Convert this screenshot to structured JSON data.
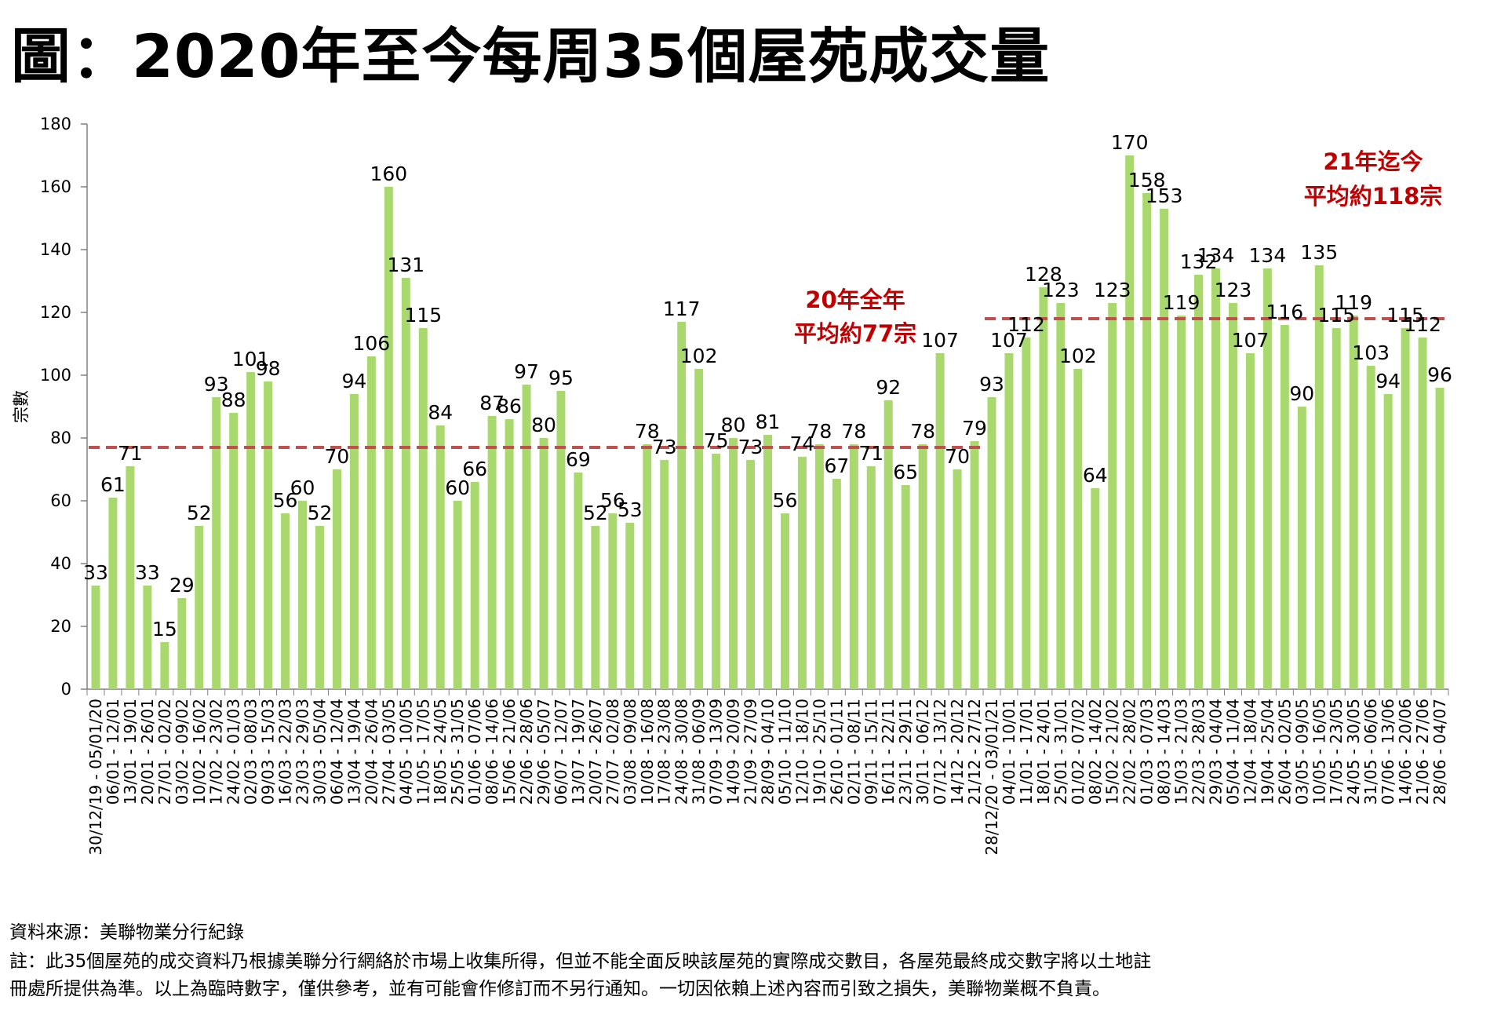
{
  "title": "圖：2020年至今每周35個屋苑成交量",
  "footer": {
    "source": "資料來源：美聯物業分行紀錄",
    "note1": "註：此35個屋苑的成交資料乃根據美聯分行網絡於市場上收集所得，但並不能全面反映該屋苑的實際成交數目，各屋苑最終成交數字將以土地註",
    "note2": "冊處所提供為準。以上為臨時數字，僅供參考，並有可能會作修訂而不另行通知。一切因依賴上述內容而引致之損失，美聯物業概不負責。"
  },
  "colors": {
    "bar": "#a9d86e",
    "avg_line": "#c0504d",
    "avg_text": "#c00000",
    "axis": "#808080"
  },
  "chart_data": {
    "type": "bar",
    "ylabel": "宗數",
    "ylim": [
      0,
      180
    ],
    "yticks": [
      0,
      20,
      40,
      60,
      80,
      100,
      120,
      140,
      160,
      180
    ],
    "grid": false,
    "categories": [
      "30/12/19 - 05/01/20",
      "06/01 - 12/01",
      "13/01 - 19/01",
      "20/01 - 26/01",
      "27/01 - 02/02",
      "03/02 - 09/02",
      "10/02 - 16/02",
      "17/02 - 23/02",
      "24/02 - 01/03",
      "02/03 - 08/03",
      "09/03 - 15/03",
      "16/03 - 22/03",
      "23/03 - 29/03",
      "30/03 - 05/04",
      "06/04 - 12/04",
      "13/04 - 19/04",
      "20/04 - 26/04",
      "27/04 - 03/05",
      "04/05 - 10/05",
      "11/05 - 17/05",
      "18/05 - 24/05",
      "25/05 - 31/05",
      "01/06 - 07/06",
      "08/06 - 14/06",
      "15/06 - 21/06",
      "22/06 - 28/06",
      "29/06 - 05/07",
      "06/07 - 12/07",
      "13/07 - 19/07",
      "20/07 - 26/07",
      "27/07 - 02/08",
      "03/08 - 09/08",
      "10/08 - 16/08",
      "17/08 - 23/08",
      "24/08 - 30/08",
      "31/08 - 06/09",
      "07/09 - 13/09",
      "14/09 - 20/09",
      "21/09 - 27/09",
      "28/09 - 04/10",
      "05/10 - 11/10",
      "12/10 - 18/10",
      "19/10 - 25/10",
      "26/10 - 01/11",
      "02/11 - 08/11",
      "09/11 - 15/11",
      "16/11 - 22/11",
      "23/11 - 29/11",
      "30/11 - 06/12",
      "07/12 - 13/12",
      "14/12 - 20/12",
      "21/12 - 27/12",
      "28/12/20 - 03/01/21",
      "04/01 - 10/01",
      "11/01 - 17/01",
      "18/01 - 24/01",
      "25/01 - 31/01",
      "01/02 - 07/02",
      "08/02 - 14/02",
      "15/02 - 21/02",
      "22/02 - 28/02",
      "01/03 - 07/03",
      "08/03 - 14/03",
      "15/03 - 21/03",
      "22/03 - 28/03",
      "29/03 - 04/04",
      "05/04 - 11/04",
      "12/04 - 18/04",
      "19/04 - 25/04",
      "26/04 - 02/05",
      "03/05 - 09/05",
      "10/05 - 16/05",
      "17/05 - 23/05",
      "24/05 - 30/05",
      "31/05 - 06/06",
      "07/06 - 13/06",
      "14/06 - 20/06",
      "21/06 - 27/06",
      "28/06 - 04/07"
    ],
    "values": [
      33,
      61,
      71,
      33,
      15,
      29,
      52,
      93,
      88,
      101,
      98,
      56,
      60,
      52,
      70,
      94,
      106,
      160,
      131,
      115,
      84,
      60,
      66,
      87,
      86,
      97,
      80,
      95,
      69,
      52,
      56,
      53,
      78,
      73,
      117,
      102,
      75,
      80,
      73,
      81,
      56,
      74,
      78,
      67,
      78,
      71,
      92,
      65,
      78,
      107,
      70,
      79,
      93,
      107,
      112,
      128,
      123,
      102,
      64,
      123,
      170,
      158,
      153,
      119,
      132,
      134,
      123,
      107,
      134,
      116,
      90,
      135,
      115,
      119,
      103,
      94,
      115,
      112,
      96
    ],
    "averages": [
      {
        "label_line1": "20年全年",
        "label_line2": "平均約77宗",
        "value": 77,
        "from_index": 0,
        "to_index": 51
      },
      {
        "label_line1": "21年迄今",
        "label_line2": "平均約118宗",
        "value": 118,
        "from_index": 52,
        "to_index": 78
      }
    ]
  }
}
